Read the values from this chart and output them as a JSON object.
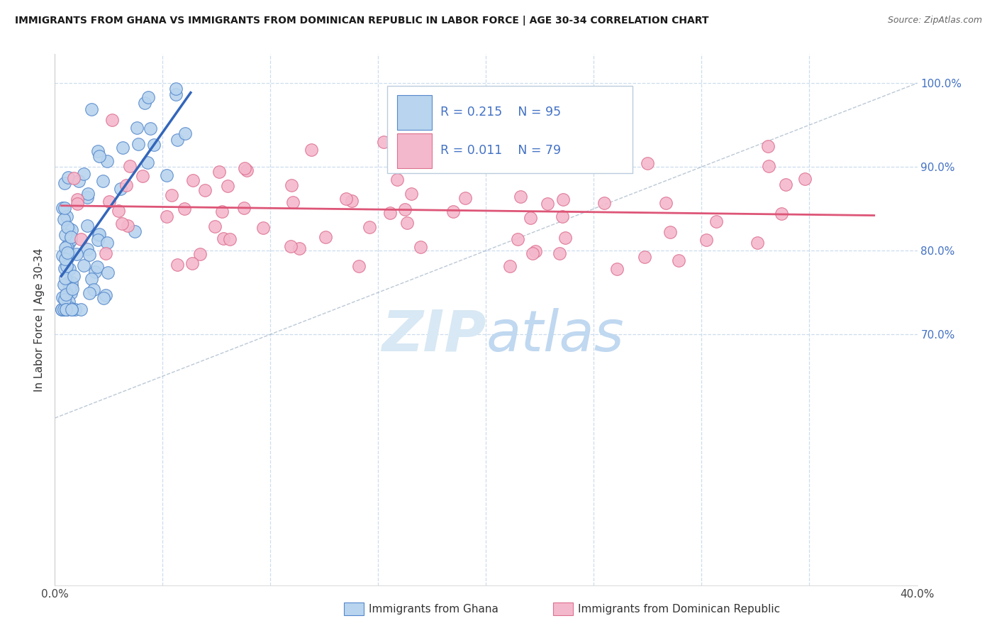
{
  "title": "IMMIGRANTS FROM GHANA VS IMMIGRANTS FROM DOMINICAN REPUBLIC IN LABOR FORCE | AGE 30-34 CORRELATION CHART",
  "source": "Source: ZipAtlas.com",
  "ylabel": "In Labor Force | Age 30-34",
  "xlim": [
    0.0,
    0.4
  ],
  "ylim": [
    0.4,
    1.035
  ],
  "ghana_R": 0.215,
  "ghana_N": 95,
  "dr_R": 0.011,
  "dr_N": 79,
  "ghana_color": "#b8d4ee",
  "ghana_edge_color": "#5588cc",
  "dr_color": "#f4b8cc",
  "dr_edge_color": "#dd7090",
  "ghana_trend_color": "#3366bb",
  "dr_trend_color": "#dd5577",
  "diag_line_color": "#aabbcc",
  "background_color": "#ffffff",
  "grid_color": "#ccddee",
  "watermark_color": "#d8e8f4",
  "right_tick_color": "#4472c4",
  "legend_edge_color": "#bbccdd"
}
